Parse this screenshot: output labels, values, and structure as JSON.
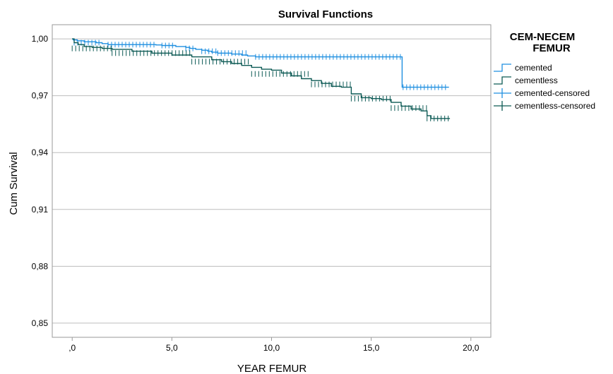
{
  "chart_data": {
    "type": "line",
    "title": "Survival Functions",
    "xlabel": "YEAR FEMUR",
    "ylabel": "Cum Survival",
    "xlim": [
      -1,
      21
    ],
    "ylim": [
      0.8425,
      1.0075
    ],
    "x_ticks": [
      0,
      5,
      10,
      15,
      20
    ],
    "x_tick_labels": [
      ",0",
      "5,0",
      "10,0",
      "15,0",
      "20,0"
    ],
    "y_ticks": [
      0.85,
      0.88,
      0.91,
      0.94,
      0.97,
      1.0
    ],
    "y_tick_labels": [
      "0,85",
      "0,88",
      "0,91",
      "0,94",
      "0,97",
      "1,00"
    ],
    "grid": "horizontal",
    "legend": {
      "title_line1": "CEM-NECEM",
      "title_line2": "FEMUR",
      "placement": "right",
      "entries": [
        "cemented",
        "cementless",
        "cemented-censored",
        "cementless-censored"
      ]
    },
    "series": [
      {
        "name": "cemented",
        "color": "#1f8fe0",
        "step": [
          [
            0.0,
            1.0
          ],
          [
            0.05,
            0.9995
          ],
          [
            0.25,
            0.999
          ],
          [
            0.6,
            0.9985
          ],
          [
            1.2,
            0.998
          ],
          [
            1.5,
            0.9975
          ],
          [
            1.8,
            0.997
          ],
          [
            4.2,
            0.9968
          ],
          [
            4.5,
            0.9965
          ],
          [
            5.2,
            0.996
          ],
          [
            5.7,
            0.9955
          ],
          [
            5.9,
            0.995
          ],
          [
            6.2,
            0.9945
          ],
          [
            6.5,
            0.994
          ],
          [
            6.8,
            0.9935
          ],
          [
            7.0,
            0.993
          ],
          [
            7.3,
            0.9925
          ],
          [
            8.0,
            0.992
          ],
          [
            8.5,
            0.9915
          ],
          [
            8.8,
            0.991
          ],
          [
            9.2,
            0.9905
          ],
          [
            16.5,
            0.9905
          ],
          [
            16.55,
            0.9745
          ],
          [
            18.9,
            0.9745
          ]
        ],
        "censored_ranges": [
          [
            0.1,
            1.5,
            0.998
          ],
          [
            1.8,
            4.2,
            0.997
          ],
          [
            4.5,
            5.2,
            0.9965
          ],
          [
            5.7,
            6.2,
            0.995
          ],
          [
            6.5,
            7.3,
            0.9935
          ],
          [
            7.3,
            8.8,
            0.9925
          ],
          [
            9.2,
            16.5,
            0.9905
          ],
          [
            16.6,
            18.9,
            0.9745
          ]
        ]
      },
      {
        "name": "cementless",
        "color": "#0d5a55",
        "step": [
          [
            0.0,
            1.0
          ],
          [
            0.1,
            0.998
          ],
          [
            0.3,
            0.997
          ],
          [
            0.6,
            0.996
          ],
          [
            1.0,
            0.9955
          ],
          [
            1.5,
            0.995
          ],
          [
            2.0,
            0.9945
          ],
          [
            3.0,
            0.9935
          ],
          [
            4.0,
            0.9925
          ],
          [
            5.0,
            0.9915
          ],
          [
            6.0,
            0.9905
          ],
          [
            7.0,
            0.989
          ],
          [
            7.5,
            0.988
          ],
          [
            8.0,
            0.987
          ],
          [
            8.5,
            0.986
          ],
          [
            9.0,
            0.985
          ],
          [
            9.5,
            0.984
          ],
          [
            10.0,
            0.9835
          ],
          [
            10.5,
            0.982
          ],
          [
            11.0,
            0.9805
          ],
          [
            11.5,
            0.979
          ],
          [
            12.0,
            0.978
          ],
          [
            12.5,
            0.9765
          ],
          [
            13.0,
            0.975
          ],
          [
            13.5,
            0.9745
          ],
          [
            14.0,
            0.971
          ],
          [
            14.5,
            0.969
          ],
          [
            15.0,
            0.9685
          ],
          [
            15.5,
            0.968
          ],
          [
            16.0,
            0.9665
          ],
          [
            16.5,
            0.9645
          ],
          [
            17.0,
            0.963
          ],
          [
            17.5,
            0.962
          ],
          [
            17.8,
            0.9595
          ],
          [
            18.0,
            0.958
          ],
          [
            18.95,
            0.958
          ]
        ],
        "censored_ranges": [
          [
            0.0,
            2.0,
            0.995
          ],
          [
            2.0,
            6.0,
            0.9925
          ],
          [
            6.0,
            9.0,
            0.988
          ],
          [
            9.0,
            12.0,
            0.9815
          ],
          [
            12.0,
            14.0,
            0.976
          ],
          [
            14.0,
            16.0,
            0.9685
          ],
          [
            16.0,
            17.8,
            0.9635
          ],
          [
            17.8,
            18.95,
            0.958
          ]
        ]
      }
    ]
  }
}
